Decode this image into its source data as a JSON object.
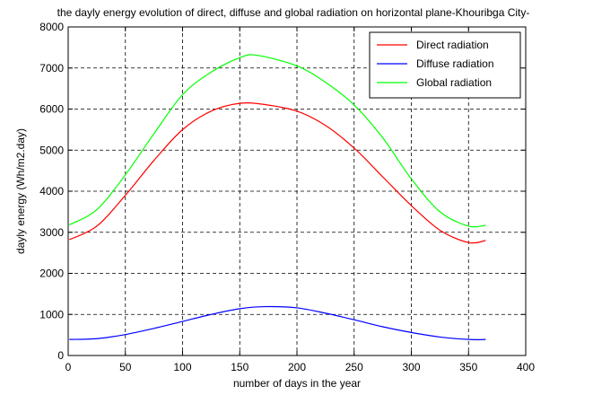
{
  "chart_data": {
    "type": "line",
    "title": "the dayly energy evolution of  direct, diffuse and global radiation on horizontal plane-Khouribga City-",
    "xlabel": "number of days in the year",
    "ylabel": "dayly energy (Wh/m2.day)",
    "xlim": [
      0,
      400
    ],
    "ylim": [
      0,
      8000
    ],
    "xticks": [
      0,
      50,
      100,
      150,
      200,
      250,
      300,
      350,
      400
    ],
    "yticks": [
      0,
      1000,
      2000,
      3000,
      4000,
      5000,
      6000,
      7000,
      8000
    ],
    "grid": true,
    "legend_position": "top-right",
    "series": [
      {
        "name": "Direct radiation",
        "color": "#ff0000",
        "x": [
          1,
          25,
          50,
          75,
          100,
          125,
          150,
          172,
          200,
          225,
          250,
          275,
          300,
          325,
          350,
          365
        ],
        "y": [
          2820,
          3150,
          3900,
          4750,
          5500,
          5950,
          6140,
          6110,
          5950,
          5600,
          5050,
          4350,
          3650,
          3050,
          2750,
          2800
        ]
      },
      {
        "name": "Diffuse radiation",
        "color": "#0000ff",
        "x": [
          1,
          25,
          50,
          75,
          100,
          125,
          150,
          172,
          200,
          225,
          250,
          275,
          300,
          325,
          350,
          365
        ],
        "y": [
          390,
          410,
          510,
          660,
          830,
          1000,
          1140,
          1190,
          1160,
          1030,
          870,
          700,
          560,
          450,
          390,
          390
        ]
      },
      {
        "name": "Global radiation",
        "color": "#00ff00",
        "x": [
          1,
          25,
          50,
          75,
          100,
          125,
          150,
          165,
          200,
          225,
          250,
          275,
          300,
          325,
          350,
          365
        ],
        "y": [
          3180,
          3550,
          4400,
          5400,
          6350,
          6900,
          7250,
          7310,
          7050,
          6650,
          6100,
          5300,
          4300,
          3500,
          3150,
          3170
        ]
      }
    ]
  }
}
